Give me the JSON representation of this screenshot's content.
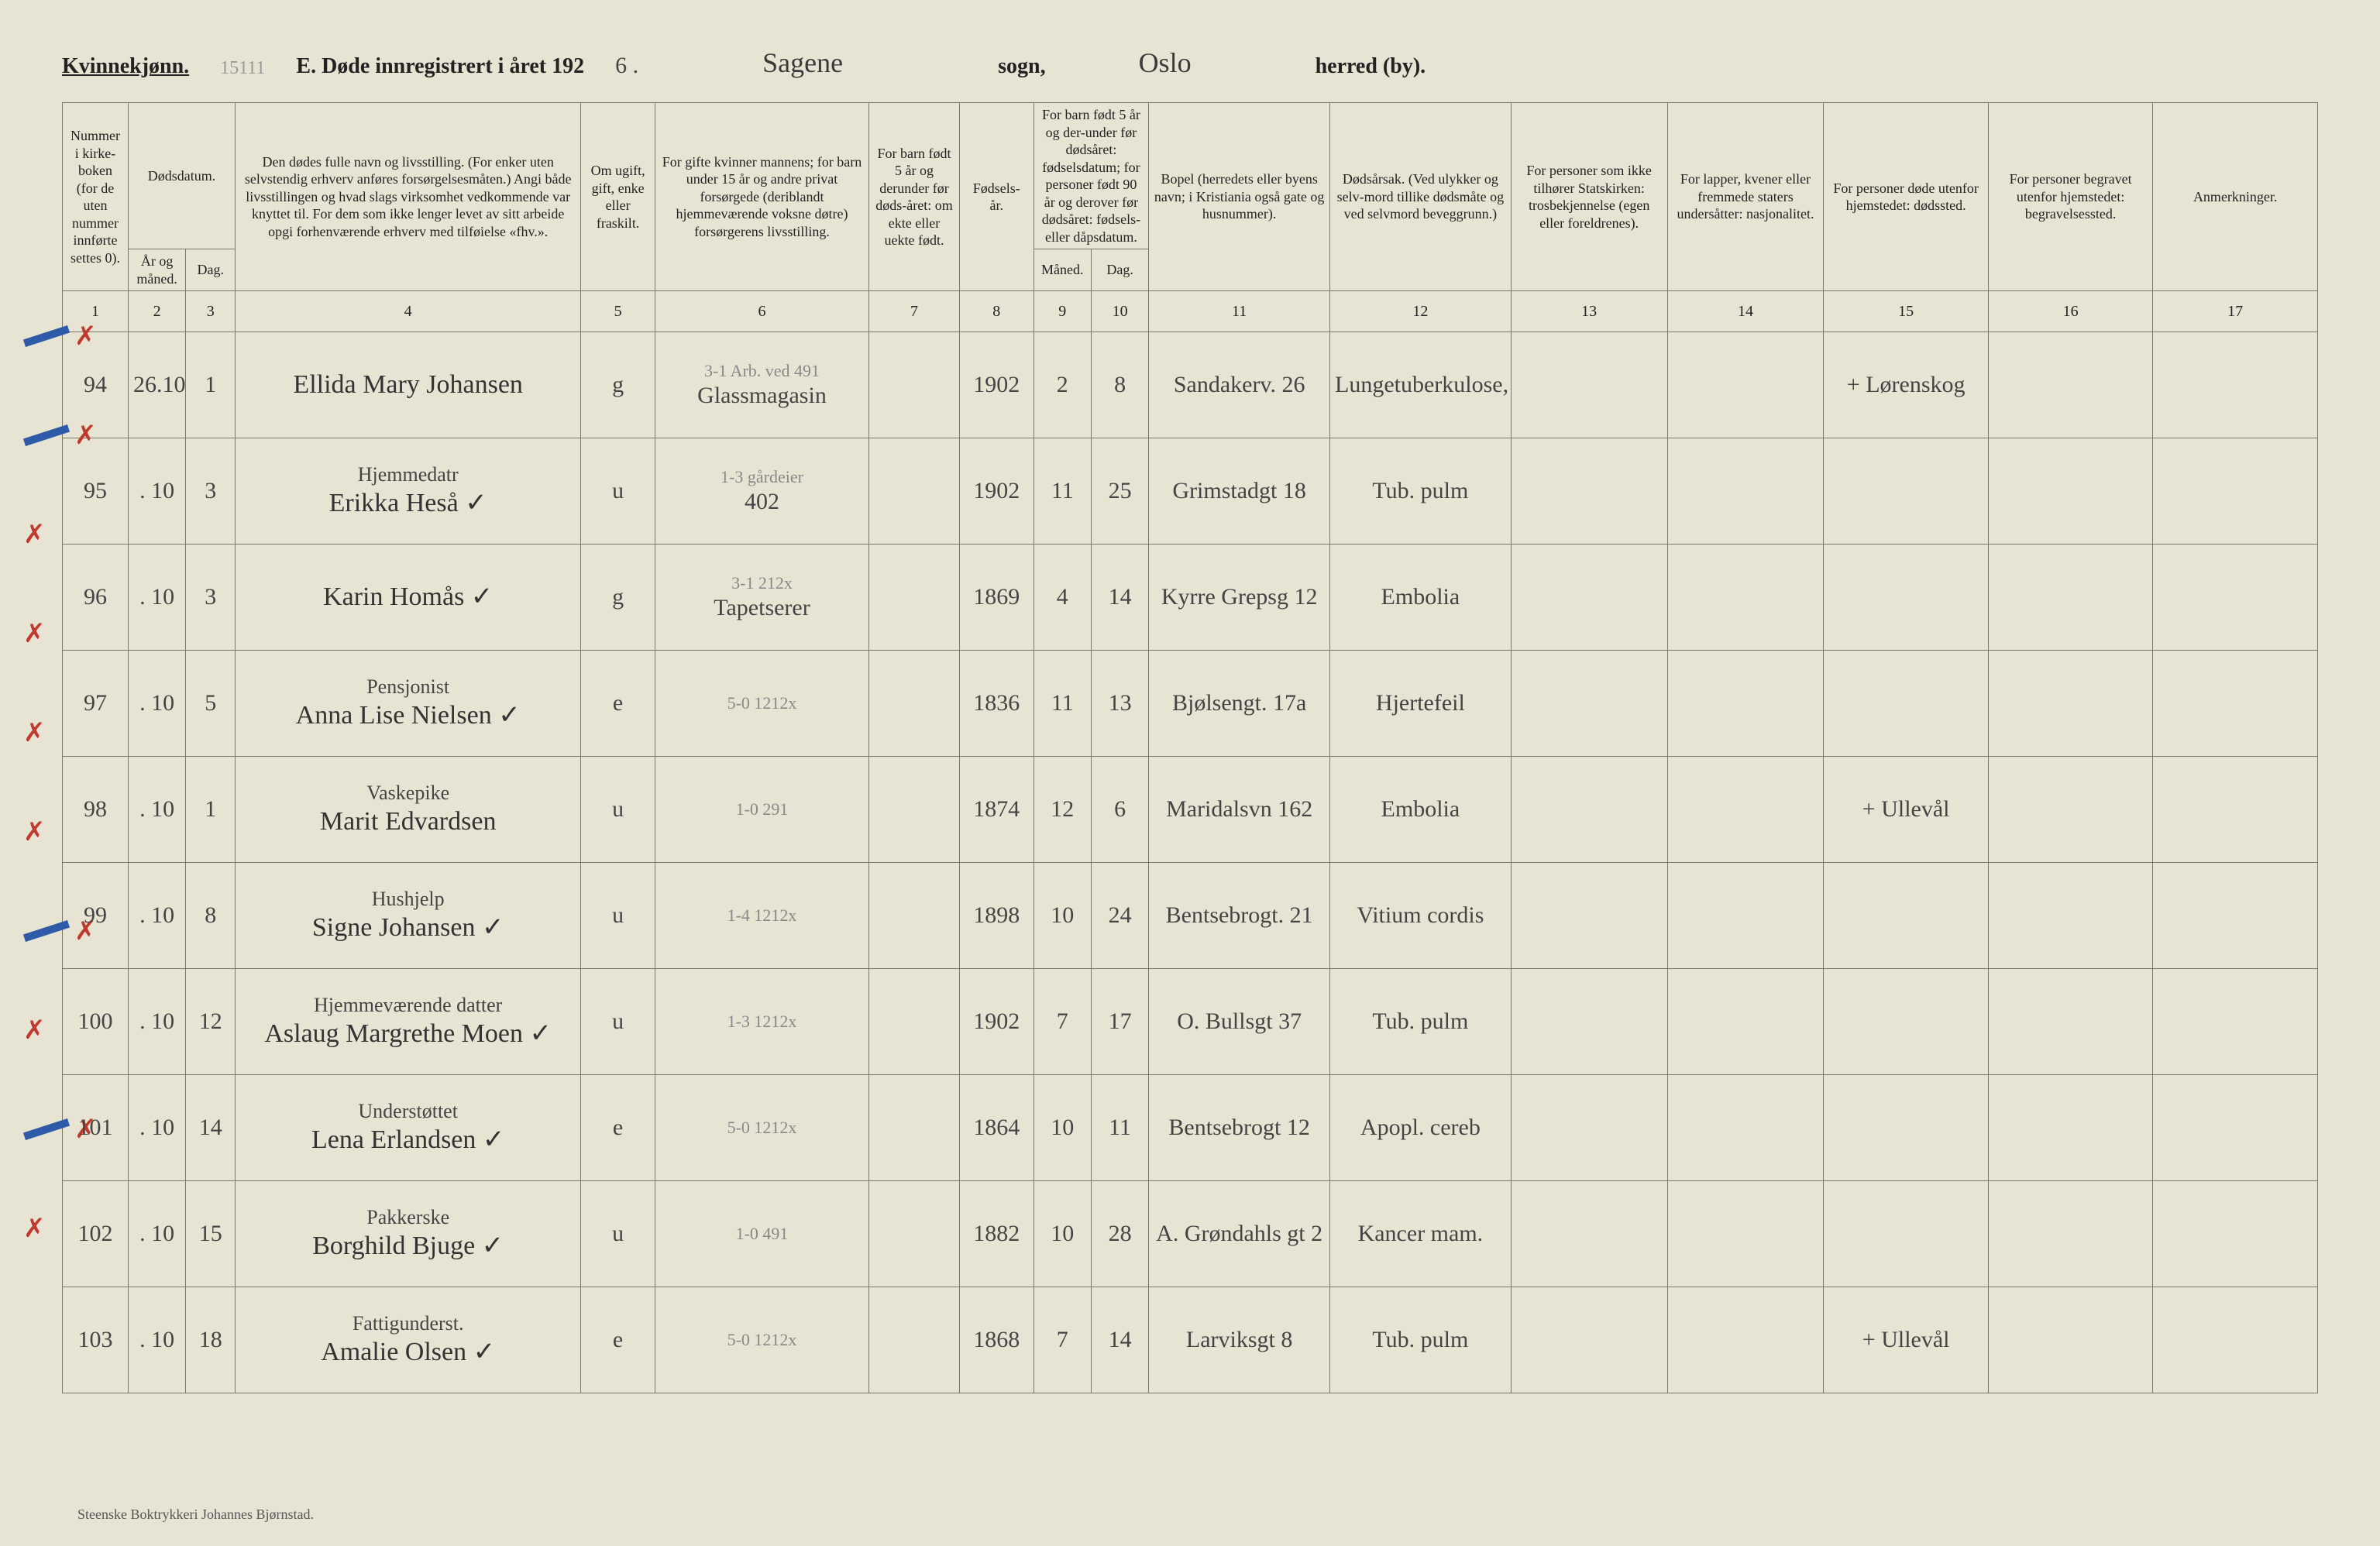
{
  "header": {
    "gender_label": "Kvinnekjønn.",
    "pencil_num": "15111",
    "section_label": "E.  Døde innregistrert i året 192",
    "year_suffix": "6 .",
    "parish_hand": "Sagene",
    "sogn_label": "sogn,",
    "district_hand": "Oslo",
    "herred_label": "herred (by)."
  },
  "col_headers": {
    "c1": "Nummer i kirke-\nboken\n(for de uten nummer innførte settes 0).",
    "c2_top": "Dødsdatum.",
    "c2": "År og måned.",
    "c3": "Dag.",
    "c4": "Den dødes fulle navn og livsstilling.\n(For enker uten selvstendig erhverv anføres forsørgelsesmåten.)\nAngi både livsstillingen og hvad slags virksomhet vedkommende var knyttet til.\nFor dem som ikke lenger levet av sitt arbeide opgi forhenværende erhverv med tilføielse «fhv.».",
    "c5": "Om ugift, gift, enke eller fraskilt.",
    "c6": "For gifte kvinner mannens;\nfor barn under 15 år og andre privat forsørgede (deriblandt hjemmeværende voksne døtre) forsørgerens livsstilling.",
    "c7": "For barn født 5 år og derunder før døds-året:\nom ekte eller uekte født.",
    "c8": "Fødsels-\når.",
    "c9_10_top": "For barn født 5 år og der-under før dødsåret:\nfødselsdatum;\nfor personer født 90 år og derover før dødsåret:\nfødsels- eller dåpsdatum.",
    "c9": "Måned.",
    "c10": "Dag.",
    "c11": "Bopel\n(herredets eller byens navn; i Kristiania også gate og husnummer).",
    "c12": "Dødsårsak.\n(Ved ulykker og selv-mord tillike dødsmåte og ved selvmord beveggrunn.)",
    "c13": "For personer som ikke tilhører Statskirken:\ntrosbekjennelse (egen eller foreldrenes).",
    "c14": "For lapper, kvener eller fremmede staters undersåtter:\nnasjonalitet.",
    "c15": "For personer døde utenfor hjemstedet:\ndødssted.",
    "c16": "For personer begravet utenfor hjemstedet:\nbegravelsessted.",
    "c17": "Anmerkninger."
  },
  "colnums": [
    "1",
    "2",
    "3",
    "4",
    "5",
    "6",
    "7",
    "8",
    "9",
    "10",
    "11",
    "12",
    "13",
    "14",
    "15",
    "16",
    "17"
  ],
  "rows": [
    {
      "mark": "✗",
      "mark_color": "red",
      "num": "94",
      "ym": "26.10",
      "day": "1",
      "occup": "",
      "name": "Ellida Mary Johansen",
      "status": "g",
      "spouse_top": "3-1  Arb. ved  491",
      "spouse": "Glassmagasin",
      "legit": "",
      "birth": "1902",
      "bm": "2",
      "bd": "8",
      "residence": "Sandakerv. 26",
      "cause_top": "Lungetuberkulose,",
      "cause": "",
      "c15": "+  Lørenskog"
    },
    {
      "mark": "✗",
      "mark_color": "red",
      "num": "95",
      "ym": ". 10",
      "day": "3",
      "occup": "Hjemmedatr",
      "name": "Erikka Heså   ✓",
      "status": "u",
      "spouse_top": "1-3  gårdeier",
      "spouse": "402",
      "legit": "",
      "birth": "1902",
      "bm": "11",
      "bd": "25",
      "residence": "Grimstadgt 18",
      "cause": "Tub. pulm",
      "c15": ""
    },
    {
      "mark": "✗",
      "mark_color": "red",
      "num": "96",
      "ym": ". 10",
      "day": "3",
      "occup": "",
      "name": "Karin Homås   ✓",
      "status": "g",
      "spouse_top": "3-1       212x",
      "spouse": "Tapetserer",
      "legit": "",
      "birth": "1869",
      "bm": "4",
      "bd": "14",
      "residence": "Kyrre Grepsg 12",
      "cause": "Embolia",
      "c15": ""
    },
    {
      "mark": "✗",
      "mark_color": "red",
      "num": "97",
      "ym": ". 10",
      "day": "5",
      "occup": "Pensjonist",
      "name": "Anna Lise Nielsen   ✓",
      "status": "e",
      "spouse_top": "5-0     1212x",
      "spouse": "",
      "legit": "",
      "birth": "1836",
      "bm": "11",
      "bd": "13",
      "residence": "Bjølsengt. 17a",
      "cause": "Hjertefeil",
      "c15": ""
    },
    {
      "mark": "✗",
      "mark_color": "red",
      "num": "98",
      "ym": ". 10",
      "day": "1",
      "occup": "Vaskepike",
      "name": "Marit Edvardsen",
      "status": "u",
      "spouse_top": "1-0     291",
      "spouse": "",
      "legit": "",
      "birth": "1874",
      "bm": "12",
      "bd": "6",
      "residence": "Maridalsvn 162",
      "cause": "Embolia",
      "c15": "+  Ullevål"
    },
    {
      "mark": "✗",
      "mark_color": "red",
      "num": "99",
      "ym": ". 10",
      "day": "8",
      "occup": "Hushjelp",
      "name": "Signe Johansen   ✓",
      "status": "u",
      "spouse_top": "1-4     1212x",
      "spouse": "",
      "legit": "",
      "birth": "1898",
      "bm": "10",
      "bd": "24",
      "residence": "Bentsebrogt. 21",
      "cause": "Vitium cordis",
      "c15": ""
    },
    {
      "mark": "✗",
      "mark_color": "red",
      "num": "100",
      "ym": ". 10",
      "day": "12",
      "occup": "Hjemmeværende datter",
      "name": "Aslaug Margrethe Moen   ✓",
      "status": "u",
      "spouse_top": "1-3     1212x",
      "spouse": "",
      "legit": "",
      "birth": "1902",
      "bm": "7",
      "bd": "17",
      "residence": "O. Bullsgt 37",
      "cause": "Tub. pulm",
      "c15": ""
    },
    {
      "mark": "✗",
      "mark_color": "red",
      "num": "101",
      "ym": ". 10",
      "day": "14",
      "occup": "Understøttet",
      "name": "Lena Erlandsen   ✓",
      "status": "e",
      "spouse_top": "5-0     1212x",
      "spouse": "",
      "legit": "",
      "birth": "1864",
      "bm": "10",
      "bd": "11",
      "residence": "Bentsebrogt 12",
      "cause": "Apopl. cereb",
      "c15": ""
    },
    {
      "mark": "✗",
      "mark_color": "red",
      "num": "102",
      "ym": ". 10",
      "day": "15",
      "occup": "Pakkerske",
      "name": "Borghild Bjuge   ✓",
      "status": "u",
      "spouse_top": "1-0     491",
      "spouse": "",
      "legit": "",
      "birth": "1882",
      "bm": "10",
      "bd": "28",
      "residence": "A. Grøndahls gt 2",
      "cause": "Kancer mam.",
      "c15": ""
    },
    {
      "mark": "✗",
      "mark_color": "red",
      "num": "103",
      "ym": ". 10",
      "day": "18",
      "occup": "Fattigunderst.",
      "name": "Amalie Olsen   ✓",
      "status": "e",
      "spouse_top": "5-0     1212x",
      "spouse": "",
      "legit": "",
      "birth": "1868",
      "bm": "7",
      "bd": "14",
      "residence": "Larviksgt 8",
      "cause": "Tub. pulm",
      "c15": "+  Ullevål"
    }
  ],
  "footer": "Steenske Boktrykkeri Johannes Bjørnstad."
}
